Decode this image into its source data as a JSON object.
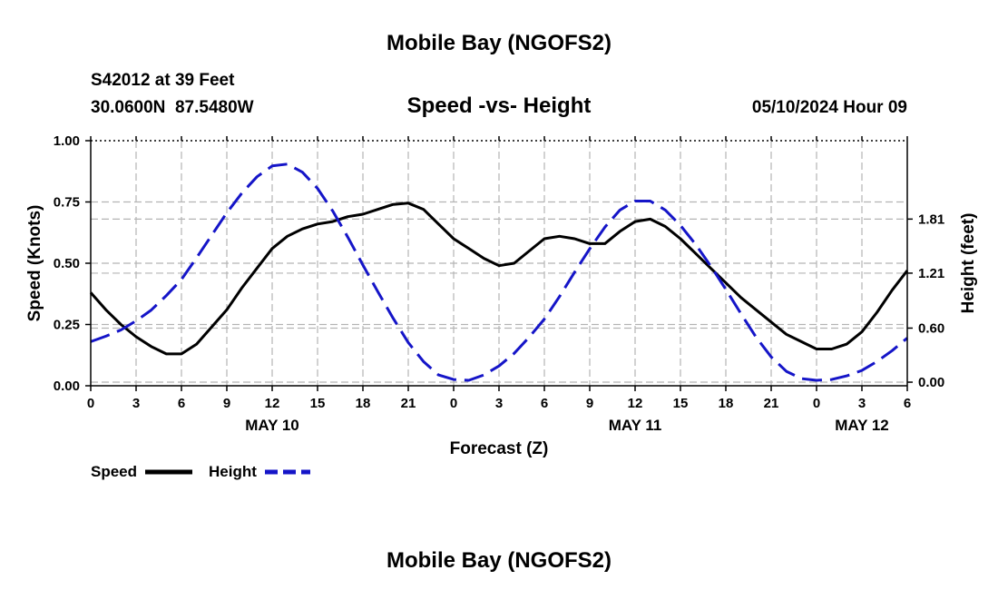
{
  "header": {
    "title": "Mobile Bay (NGOFS2)",
    "station": "S42012 at 39 Feet",
    "coords": "30.0600N  87.5480W",
    "subtitle": "Speed -vs- Height",
    "datetime": "05/10/2024 Hour 09"
  },
  "footer": {
    "title": "Mobile Bay (NGOFS2)"
  },
  "legend": {
    "speed_label": "Speed",
    "height_label": "Height"
  },
  "colors": {
    "speed": "#000000",
    "height": "#1515c8",
    "grid": "#b4b4b4"
  },
  "chart_data": {
    "type": "line",
    "xlabel": "Forecast (Z)",
    "ylabel": "Speed (Knots)",
    "y2label": "Height (feet)",
    "xlim": [
      0,
      54
    ],
    "ylim": [
      0,
      1
    ],
    "y2lim": [
      -0.04,
      2.68
    ],
    "xticks": [
      0,
      3,
      6,
      9,
      12,
      15,
      18,
      21,
      24,
      27,
      30,
      33,
      36,
      39,
      42,
      45,
      48,
      51,
      54
    ],
    "xtick_labels": [
      "0",
      "3",
      "6",
      "9",
      "12",
      "15",
      "18",
      "21",
      "0",
      "3",
      "6",
      "9",
      "12",
      "15",
      "18",
      "21",
      "0",
      "3",
      "6"
    ],
    "date_labels": [
      {
        "x": 12,
        "label": "MAY 10"
      },
      {
        "x": 36,
        "label": "MAY 11"
      },
      {
        "x": 51,
        "label": "MAY 12"
      }
    ],
    "yticks": [
      0,
      0.25,
      0.5,
      0.75,
      1.0
    ],
    "ytick_labels": [
      "0.00",
      "0.25",
      "0.50",
      "0.75",
      "1.00"
    ],
    "y2ticks": [
      0,
      0.6,
      1.21,
      1.81
    ],
    "y2tick_labels": [
      "0.00",
      "0.60",
      "1.21",
      "1.81"
    ],
    "grid": true,
    "legend_position": "bottom-left",
    "series": [
      {
        "name": "Speed",
        "axis": "left",
        "style": "solid",
        "x": [
          0,
          1,
          2,
          3,
          4,
          5,
          6,
          7,
          8,
          9,
          10,
          11,
          12,
          13,
          14,
          15,
          16,
          17,
          18,
          19,
          20,
          21,
          22,
          23,
          24,
          25,
          26,
          27,
          28,
          29,
          30,
          31,
          32,
          33,
          34,
          35,
          36,
          37,
          38,
          39,
          40,
          41,
          42,
          43,
          44,
          45,
          46,
          47,
          48,
          49,
          50,
          51,
          52,
          53,
          54
        ],
        "values": [
          0.38,
          0.31,
          0.25,
          0.2,
          0.16,
          0.13,
          0.13,
          0.17,
          0.24,
          0.31,
          0.4,
          0.48,
          0.56,
          0.61,
          0.64,
          0.66,
          0.67,
          0.69,
          0.7,
          0.72,
          0.74,
          0.745,
          0.72,
          0.66,
          0.6,
          0.56,
          0.52,
          0.49,
          0.5,
          0.55,
          0.6,
          0.61,
          0.6,
          0.58,
          0.58,
          0.63,
          0.67,
          0.68,
          0.65,
          0.6,
          0.54,
          0.48,
          0.42,
          0.36,
          0.31,
          0.26,
          0.21,
          0.18,
          0.15,
          0.15,
          0.17,
          0.22,
          0.3,
          0.39,
          0.47
        ]
      },
      {
        "name": "Height",
        "axis": "right",
        "style": "dashed",
        "x": [
          0,
          1,
          2,
          3,
          4,
          5,
          6,
          7,
          8,
          9,
          10,
          11,
          12,
          13,
          14,
          15,
          16,
          17,
          18,
          19,
          20,
          21,
          22,
          23,
          24,
          25,
          26,
          27,
          28,
          29,
          30,
          31,
          32,
          33,
          34,
          35,
          36,
          37,
          38,
          39,
          40,
          41,
          42,
          43,
          44,
          45,
          46,
          47,
          48,
          49,
          50,
          51,
          52,
          53,
          54
        ],
        "values": [
          0.45,
          0.51,
          0.58,
          0.68,
          0.8,
          0.96,
          1.14,
          1.38,
          1.63,
          1.88,
          2.1,
          2.28,
          2.4,
          2.42,
          2.33,
          2.15,
          1.9,
          1.61,
          1.3,
          1.0,
          0.71,
          0.44,
          0.23,
          0.08,
          0.03,
          0.02,
          0.08,
          0.18,
          0.32,
          0.5,
          0.7,
          0.95,
          1.22,
          1.48,
          1.72,
          1.91,
          2.01,
          2.01,
          1.91,
          1.74,
          1.53,
          1.29,
          1.03,
          0.76,
          0.5,
          0.28,
          0.12,
          0.04,
          0.02,
          0.03,
          0.07,
          0.13,
          0.23,
          0.35,
          0.49
        ]
      }
    ]
  }
}
